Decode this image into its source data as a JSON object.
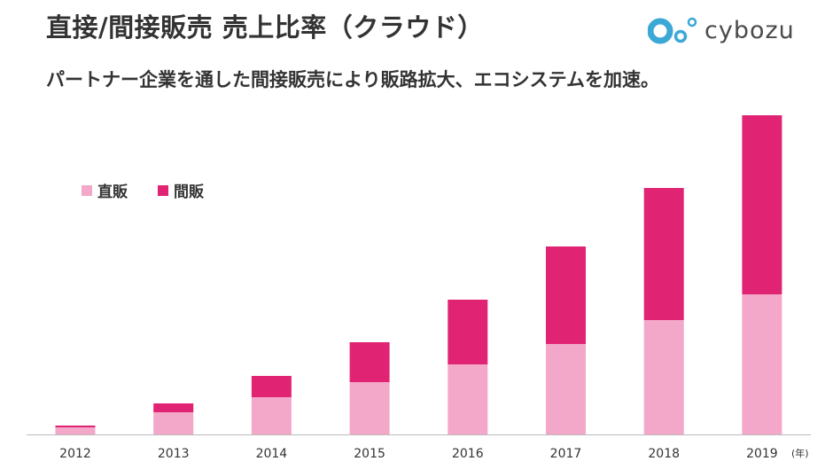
{
  "title": "直接/間接販売 売上比率（クラウド）",
  "subtitle": "パートナー企業を通した間接販売により販路拡大、エコシステムを加速。",
  "logo": {
    "text": "cybozu"
  },
  "colors": {
    "direct": "#f3a7c9",
    "indirect": "#e12374",
    "axis": "#bbbbbb",
    "text": "#333333"
  },
  "chart_data": {
    "type": "bar",
    "stacked": true,
    "categories": [
      "2012",
      "2013",
      "2014",
      "2015",
      "2016",
      "2017",
      "2018",
      "2019"
    ],
    "x_unit": "(年)",
    "series": [
      {
        "name": "直販",
        "values": [
          8,
          25,
          42,
          59,
          79,
          102,
          129,
          158
        ]
      },
      {
        "name": "間販",
        "values": [
          2,
          10,
          24,
          45,
          73,
          110,
          149,
          202
        ]
      }
    ],
    "ylim": [
      0,
      360
    ],
    "legend": "top-left",
    "grid": false
  }
}
